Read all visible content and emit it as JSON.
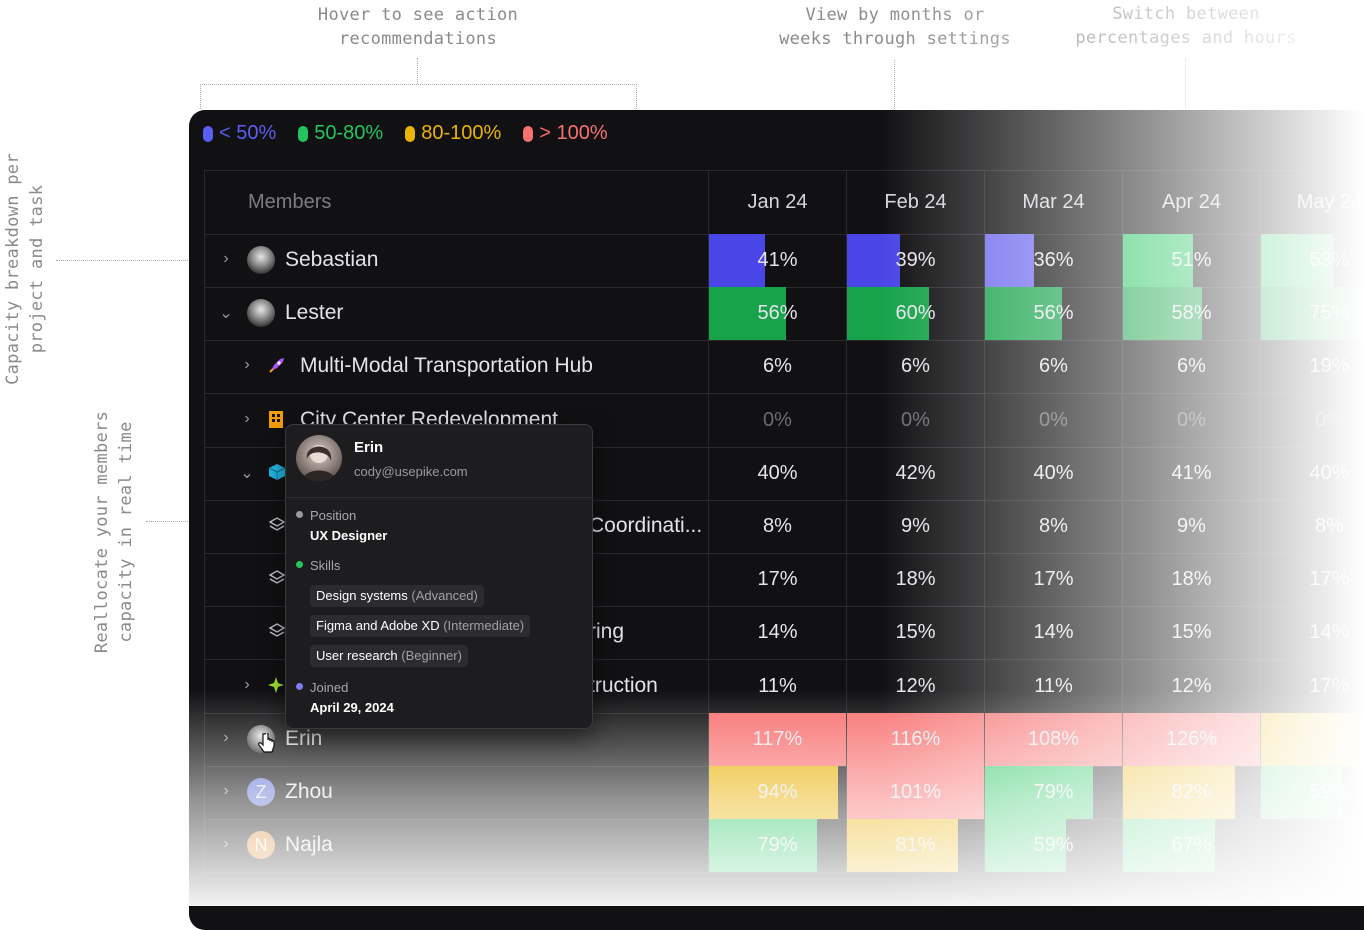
{
  "annotations": {
    "hover": "Hover to see action\nrecommendations",
    "view": "View by months or\nweeks through settings",
    "switch": "Switch between\npercentages and hours",
    "breakdown": "Capacity breakdown per\nproject and task",
    "reallocate": "Reallocate your members\ncapacity in real time"
  },
  "legend": [
    {
      "label": "< 50%",
      "color": "#5b5ef5"
    },
    {
      "label": "50-80%",
      "color": "#22c55e"
    },
    {
      "label": "80-100%",
      "color": "#eab308"
    },
    {
      "label": "> 100%",
      "color": "#f87171"
    }
  ],
  "table": {
    "members_header": "Members",
    "months": [
      "Jan 24",
      "Feb 24",
      "Mar 24",
      "Apr 24",
      "May 24"
    ],
    "rows": [
      {
        "name": "Sebastian",
        "chevron": "›",
        "values": [
          "41%",
          "39%",
          "36%",
          "51%",
          "53%"
        ],
        "fill": [
          0.41,
          0.39,
          0.36,
          0.51,
          0.53
        ],
        "colors": [
          "#4a45e6",
          "#4a45e6",
          "#6e69ef",
          "#22c55e",
          "#22c55e"
        ]
      },
      {
        "name": "Lester",
        "chevron": "⌄",
        "values": [
          "56%",
          "60%",
          "56%",
          "58%",
          "75%"
        ],
        "fill": [
          0.56,
          0.6,
          0.56,
          0.58,
          0.75
        ],
        "colors": [
          "#16a34a",
          "#16a34a",
          "#16a34a",
          "#16a34a",
          "#16a34a"
        ]
      },
      {
        "name": "Multi-Modal Transportation Hub",
        "chevron": "›",
        "values": [
          "6%",
          "6%",
          "6%",
          "6%",
          "19%"
        ]
      },
      {
        "name": "City Center Redevelopment",
        "chevron": "›",
        "values": [
          "0%",
          "0%",
          "0%",
          "0%",
          "0%"
        ]
      },
      {
        "name": "",
        "chevron": "⌄",
        "values": [
          "40%",
          "42%",
          "40%",
          "41%",
          "40%"
        ]
      },
      {
        "name": "Coordinati...",
        "chevron": "",
        "values": [
          "8%",
          "9%",
          "8%",
          "9%",
          "8%"
        ]
      },
      {
        "name": "",
        "chevron": "",
        "values": [
          "17%",
          "18%",
          "17%",
          "18%",
          "17%"
        ]
      },
      {
        "name": "ring",
        "chevron": "",
        "values": [
          "14%",
          "15%",
          "14%",
          "15%",
          "14%"
        ]
      },
      {
        "name": "truction",
        "chevron": "›",
        "values": [
          "11%",
          "12%",
          "11%",
          "12%",
          "17%"
        ]
      },
      {
        "name": "Erin",
        "chevron": "›",
        "values": [
          "117%",
          "116%",
          "108%",
          "126%",
          ""
        ],
        "fill": [
          1,
          1,
          1,
          1,
          1
        ],
        "colors": [
          "#f87171",
          "#f87171",
          "#f87171",
          "#f87171",
          "#eab308"
        ]
      },
      {
        "name": "Zhou",
        "chevron": "›",
        "values": [
          "94%",
          "101%",
          "79%",
          "82%",
          "59%"
        ],
        "fill": [
          0.94,
          1,
          0.79,
          0.82,
          0.59
        ],
        "colors": [
          "#eab308",
          "#f87171",
          "#22c55e",
          "#eab308",
          "#22c55e"
        ]
      },
      {
        "name": "Najla",
        "chevron": "›",
        "values": [
          "79%",
          "81%",
          "59%",
          "67%",
          ""
        ],
        "fill": [
          0.79,
          0.81,
          0.59,
          0.67,
          0
        ],
        "colors": [
          "#22c55e",
          "#eab308",
          "#22c55e",
          "#22c55e",
          "#22c55e"
        ]
      }
    ]
  },
  "tooltip": {
    "name": "Erin",
    "email": "cody@usepike.com",
    "position_label": "Position",
    "position_value": "UX Designer",
    "skills_label": "Skills",
    "skills": [
      {
        "name": "Design systems",
        "level": "(Advanced)"
      },
      {
        "name": "Figma and Adobe XD",
        "level": "(Intermediate)"
      },
      {
        "name": "User research",
        "level": "(Beginner)"
      }
    ],
    "joined_label": "Joined",
    "joined_value": "April 29, 2024"
  },
  "avatar_initials": {
    "zhou": "Z",
    "najla": "N"
  }
}
